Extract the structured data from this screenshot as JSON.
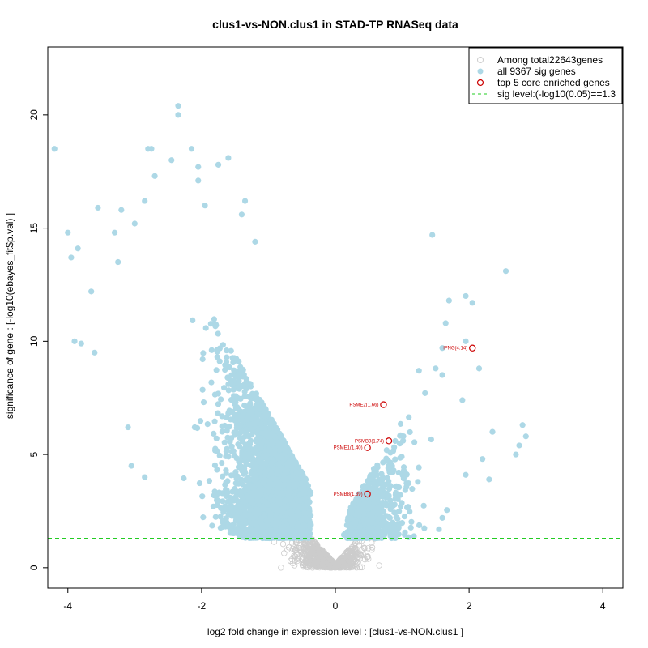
{
  "chart_data": {
    "type": "scatter",
    "title": "clus1-vs-NON.clus1 in STAD-TP RNASeq data",
    "xlabel": "log2 fold change in expression level : [clus1-vs-NON.clus1 ]",
    "ylabel": "significance of gene : [-log10(ebayes_fit$p.val) ]",
    "xlim": [
      -4.3,
      4.3
    ],
    "ylim": [
      -0.9,
      23.0
    ],
    "x_ticks": [
      -4,
      -2,
      0,
      2,
      4
    ],
    "y_ticks": [
      0,
      5,
      10,
      15,
      20
    ],
    "sig_level": 1.3,
    "colors": {
      "nonsig": "#cccccc",
      "sig": "#add8e6",
      "top": "#cc0000",
      "threshold": "#22cc22",
      "axis": "#000000"
    },
    "legend": {
      "position": "top-right",
      "entries": [
        {
          "label": "Among total22643genes",
          "marker": "open-circle-grey"
        },
        {
          "label": "all 9367 sig genes",
          "marker": "filled-circle-lightblue"
        },
        {
          "label": "top 5 core enriched genes",
          "marker": "open-circle-red"
        },
        {
          "label": "sig level:(-log10(0.05)==1.3",
          "marker": "dashed-line-green"
        }
      ]
    },
    "top_genes": [
      {
        "label": "IFNG(4.14)",
        "x": 2.05,
        "y": 9.7
      },
      {
        "label": "PSME2(1.66)",
        "x": 0.72,
        "y": 7.2
      },
      {
        "label": "PSMB9(1.74)",
        "x": 0.8,
        "y": 5.6
      },
      {
        "label": "PSME1(1.40)",
        "x": 0.48,
        "y": 5.3
      },
      {
        "label": "PSMB8(1.39)",
        "x": 0.48,
        "y": 3.25
      }
    ],
    "sig_outliers": [
      {
        "x": -4.2,
        "y": 18.5
      },
      {
        "x": -4.0,
        "y": 14.8
      },
      {
        "x": -3.95,
        "y": 13.7
      },
      {
        "x": -3.85,
        "y": 14.1
      },
      {
        "x": -3.9,
        "y": 10.0
      },
      {
        "x": -3.8,
        "y": 9.9
      },
      {
        "x": -3.55,
        "y": 15.9
      },
      {
        "x": -3.3,
        "y": 14.8
      },
      {
        "x": -3.2,
        "y": 15.8
      },
      {
        "x": -3.0,
        "y": 15.2
      },
      {
        "x": -2.85,
        "y": 16.2
      },
      {
        "x": -2.8,
        "y": 18.5
      },
      {
        "x": -2.75,
        "y": 18.5
      },
      {
        "x": -2.7,
        "y": 17.3
      },
      {
        "x": -2.45,
        "y": 18.0
      },
      {
        "x": -2.35,
        "y": 20.4
      },
      {
        "x": -2.35,
        "y": 20.0
      },
      {
        "x": -2.15,
        "y": 18.5
      },
      {
        "x": -2.05,
        "y": 17.7
      },
      {
        "x": -2.05,
        "y": 17.1
      },
      {
        "x": -1.95,
        "y": 16.0
      },
      {
        "x": -1.75,
        "y": 17.8
      },
      {
        "x": -1.6,
        "y": 18.1
      },
      {
        "x": -1.4,
        "y": 15.6
      },
      {
        "x": -1.35,
        "y": 16.2
      },
      {
        "x": -1.2,
        "y": 14.4
      },
      {
        "x": -3.6,
        "y": 9.5
      },
      {
        "x": -3.1,
        "y": 6.2
      },
      {
        "x": -3.05,
        "y": 4.5
      },
      {
        "x": -2.85,
        "y": 4.0
      },
      {
        "x": -3.25,
        "y": 13.5
      },
      {
        "x": -3.65,
        "y": 12.2
      },
      {
        "x": 1.45,
        "y": 14.7
      },
      {
        "x": 2.55,
        "y": 13.1
      },
      {
        "x": 1.95,
        "y": 12.0
      },
      {
        "x": 2.05,
        "y": 11.7
      },
      {
        "x": 1.7,
        "y": 11.8
      },
      {
        "x": 1.65,
        "y": 10.8
      },
      {
        "x": 1.6,
        "y": 9.7
      },
      {
        "x": 1.95,
        "y": 10.0
      },
      {
        "x": 2.15,
        "y": 8.8
      },
      {
        "x": 2.8,
        "y": 6.3
      },
      {
        "x": 2.85,
        "y": 5.8
      },
      {
        "x": 2.75,
        "y": 5.4
      },
      {
        "x": 2.7,
        "y": 5.0
      },
      {
        "x": 2.35,
        "y": 6.0
      },
      {
        "x": 1.9,
        "y": 7.4
      },
      {
        "x": 1.25,
        "y": 8.7
      },
      {
        "x": 1.5,
        "y": 8.8
      },
      {
        "x": 2.2,
        "y": 4.8
      },
      {
        "x": 2.3,
        "y": 3.9
      },
      {
        "x": 1.95,
        "y": 4.1
      },
      {
        "x": 1.6,
        "y": 2.2
      },
      {
        "x": 1.55,
        "y": 1.7
      }
    ]
  }
}
